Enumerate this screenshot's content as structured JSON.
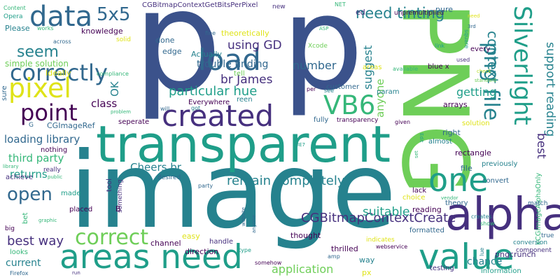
{
  "colors": {
    "background": "#ffffff",
    "navy": "#3b528b",
    "indigo": "#46307e",
    "purple": "#440154",
    "blue": "#31688e",
    "teal": "#26828e",
    "sea": "#1f9e89",
    "green": "#35b779",
    "lime": "#6ece58",
    "yellowgreen": "#b5de2b",
    "yellow": "#dfe318"
  },
  "words": [
    {
      "text": "image",
      "color": "teal"
    },
    {
      "text": "p",
      "color": "navy"
    },
    {
      "text": "p",
      "color": "navy"
    },
    {
      "text": "PNG",
      "color": "lime"
    },
    {
      "text": "transparent",
      "color": "sea"
    },
    {
      "text": "areas need",
      "color": "sea"
    },
    {
      "text": "alpha",
      "color": "indigo"
    },
    {
      "text": "value",
      "color": "sea"
    },
    {
      "text": "one",
      "color": "sea"
    },
    {
      "text": "created",
      "color": "indigo"
    },
    {
      "text": "load",
      "color": "blue"
    },
    {
      "text": "data",
      "color": "blue"
    },
    {
      "text": "correctly",
      "color": "blue"
    },
    {
      "text": "pixel",
      "color": "yellow"
    },
    {
      "text": "point",
      "color": "purple"
    },
    {
      "text": "VB6",
      "color": "green"
    },
    {
      "text": "Silverlight",
      "color": "sea"
    },
    {
      "text": "png file",
      "color": "teal"
    },
    {
      "text": "5x5",
      "color": "blue"
    },
    {
      "text": "correct",
      "color": "lime"
    },
    {
      "text": "open",
      "color": "blue"
    },
    {
      "text": "need tinting",
      "color": "teal"
    },
    {
      "text": "context",
      "color": "teal"
    },
    {
      "text": "seem",
      "color": "teal"
    },
    {
      "text": "using GD",
      "color": "indigo"
    },
    {
      "text": "br James",
      "color": "indigo"
    },
    {
      "text": "particular hue",
      "color": "sea"
    },
    {
      "text": "remain completely",
      "color": "teal"
    },
    {
      "text": "CGBitmapContextCreate",
      "color": "indigo"
    },
    {
      "text": "suitable",
      "color": "sea"
    },
    {
      "text": "best way",
      "color": "indigo"
    },
    {
      "text": "application",
      "color": "lime"
    },
    {
      "text": "Cheers br",
      "color": "teal"
    },
    {
      "text": "support reading",
      "color": "teal"
    },
    {
      "text": "best",
      "color": "indigo"
    },
    {
      "text": "getting",
      "color": "sea"
    },
    {
      "text": "number",
      "color": "blue"
    },
    {
      "text": "anyone",
      "color": "lime"
    },
    {
      "text": "suggest",
      "color": "teal"
    },
    {
      "text": "loading library",
      "color": "blue"
    },
    {
      "text": "third party",
      "color": "green"
    },
    {
      "text": "returns",
      "color": "sea"
    },
    {
      "text": "class",
      "color": "purple"
    },
    {
      "text": "OK",
      "color": "teal"
    },
    {
      "text": "trouble finding",
      "color": "blue"
    },
    {
      "text": "simple solution",
      "color": "lime"
    },
    {
      "text": "current",
      "color": "teal"
    },
    {
      "text": "chance",
      "color": "teal"
    },
    {
      "text": "kCGImageAlphaOnly",
      "color": "green"
    },
    {
      "text": "CGBitmapContextGetBitsPerPixel",
      "color": "indigo"
    },
    {
      "text": "Content",
      "color": "green"
    },
    {
      "text": "Opera",
      "color": "sea"
    },
    {
      "text": "Please",
      "color": "teal"
    },
    {
      "text": "works",
      "color": "green"
    },
    {
      "text": "across",
      "color": "blue"
    },
    {
      "text": "knowledge",
      "color": "purple"
    },
    {
      "text": "edge",
      "color": "blue"
    },
    {
      "text": "done",
      "color": "blue"
    },
    {
      "text": "solid",
      "color": "yellow"
    },
    {
      "text": "Actually",
      "color": "teal"
    },
    {
      "text": "theoretically",
      "color": "yellow"
    },
    {
      "text": "fine",
      "color": "blue"
    },
    {
      "text": "tell",
      "color": "lime"
    },
    {
      "text": "Ideally",
      "color": "yellow"
    },
    {
      "text": "compliance",
      "color": "green"
    },
    {
      "text": "sure",
      "color": "blue"
    },
    {
      "text": "ed",
      "color": "indigo"
    },
    {
      "text": "new",
      "color": "indigo"
    },
    {
      "text": "NET",
      "color": "green"
    },
    {
      "text": "unpremultiplied",
      "color": "purple"
    },
    {
      "text": "pure",
      "color": "blue"
    },
    {
      "text": "need",
      "color": "yellow"
    },
    {
      "text": "3rd",
      "color": "blue"
    },
    {
      "text": "link",
      "color": "sea"
    },
    {
      "text": "square",
      "color": "sea"
    },
    {
      "text": "every",
      "color": "purple"
    },
    {
      "text": "used",
      "color": "indigo"
    },
    {
      "text": "ASP",
      "color": "green"
    },
    {
      "text": "Xcode",
      "color": "lime"
    },
    {
      "text": "areas",
      "color": "yellow"
    },
    {
      "text": "available",
      "color": "green"
    },
    {
      "text": "blue x",
      "color": "purple"
    },
    {
      "text": "check",
      "color": "yellowgreen"
    },
    {
      "text": "standard",
      "color": "lime"
    },
    {
      "text": "customer",
      "color": "blue"
    },
    {
      "text": "per",
      "color": "purple"
    },
    {
      "text": "see",
      "color": "teal"
    },
    {
      "text": "param",
      "color": "teal"
    },
    {
      "text": "arrays",
      "color": "purple"
    },
    {
      "text": "reen",
      "color": "teal"
    },
    {
      "text": "Everywhere",
      "color": "purple"
    },
    {
      "text": "got",
      "color": "teal"
    },
    {
      "text": "will",
      "color": "blue"
    },
    {
      "text": "problem",
      "color": "green"
    },
    {
      "text": "G",
      "color": "blue"
    },
    {
      "text": "CGImageRef",
      "color": "blue"
    },
    {
      "text": "seperate",
      "color": "purple"
    },
    {
      "text": "fully",
      "color": "blue"
    },
    {
      "text": "transparency",
      "color": "purple"
    },
    {
      "text": "given",
      "color": "purple"
    },
    {
      "text": "solution",
      "color": "yellow"
    },
    {
      "text": "right",
      "color": "blue"
    },
    {
      "text": "almost",
      "color": "teal"
    },
    {
      "text": "rectangle",
      "color": "purple"
    },
    {
      "text": "previously",
      "color": "teal"
    },
    {
      "text": "convert",
      "color": "blue"
    },
    {
      "text": "file",
      "color": "blue"
    },
    {
      "text": "nothing",
      "color": "purple"
    },
    {
      "text": "desired",
      "color": "blue"
    },
    {
      "text": "IE7",
      "color": "sea"
    },
    {
      "text": "set",
      "color": "green"
    },
    {
      "text": "Edit",
      "color": "sea"
    },
    {
      "text": "tool",
      "color": "indigo"
    },
    {
      "text": "library",
      "color": "green"
    },
    {
      "text": "really",
      "color": "indigo"
    },
    {
      "text": "achieve",
      "color": "indigo"
    },
    {
      "text": "public",
      "color": "green"
    },
    {
      "text": "made",
      "color": "sea"
    },
    {
      "text": "placed",
      "color": "purple"
    },
    {
      "text": "something",
      "color": "indigo"
    },
    {
      "text": "B",
      "color": "purple"
    },
    {
      "text": "bet",
      "color": "green"
    },
    {
      "text": "graphic",
      "color": "green"
    },
    {
      "text": "big",
      "color": "purple"
    },
    {
      "text": "looks",
      "color": "green"
    },
    {
      "text": "Firefox",
      "color": "blue"
    },
    {
      "text": "run",
      "color": "indigo"
    },
    {
      "text": "website",
      "color": "blue"
    },
    {
      "text": "anyone",
      "color": "blue"
    },
    {
      "text": "party",
      "color": "blue"
    },
    {
      "text": "choice",
      "color": "yellow"
    },
    {
      "text": "lack",
      "color": "purple"
    },
    {
      "text": "reading",
      "color": "purple"
    },
    {
      "text": "theory",
      "color": "blue"
    },
    {
      "text": "vendor",
      "color": "green"
    },
    {
      "text": "easy",
      "color": "yellow"
    },
    {
      "text": "thought",
      "color": "purple"
    },
    {
      "text": "indicates",
      "color": "yellow"
    },
    {
      "text": "formatted",
      "color": "blue"
    },
    {
      "text": "testing",
      "color": "indigo"
    },
    {
      "text": "pngcrunch",
      "color": "indigo"
    },
    {
      "text": "channel",
      "color": "purple"
    },
    {
      "text": "handle",
      "color": "indigo"
    },
    {
      "text": "direction",
      "color": "purple"
    },
    {
      "text": "type",
      "color": "sea"
    },
    {
      "text": "amp",
      "color": "blue"
    },
    {
      "text": "somehow",
      "color": "purple"
    },
    {
      "text": "thrilled",
      "color": "purple"
    },
    {
      "text": "webservice",
      "color": "purple"
    },
    {
      "text": "way",
      "color": "teal"
    },
    {
      "text": "px",
      "color": "yellow"
    },
    {
      "text": "lue",
      "color": "teal"
    },
    {
      "text": "match",
      "color": "blue"
    },
    {
      "text": "creates",
      "color": "teal"
    },
    {
      "text": "show",
      "color": "green"
    },
    {
      "text": "true",
      "color": "blue"
    },
    {
      "text": "conversion",
      "color": "teal"
    },
    {
      "text": "component",
      "color": "indigo"
    },
    {
      "text": "information",
      "color": "sea"
    }
  ]
}
